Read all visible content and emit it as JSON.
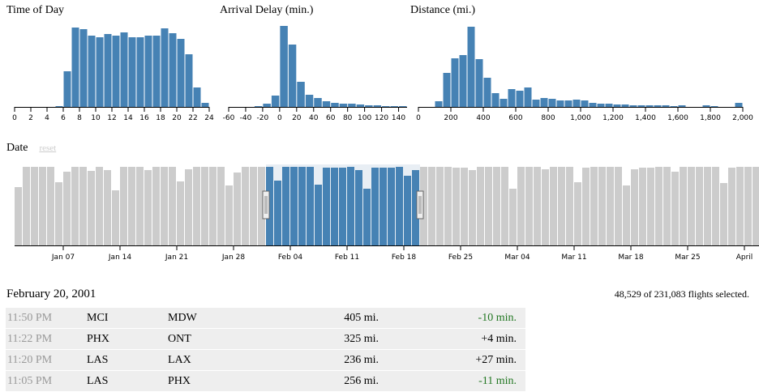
{
  "charts": {
    "time_of_day_title": "Time of Day",
    "arrival_delay_title": "Arrival Delay (min.)",
    "distance_title": "Distance (mi.)",
    "date_title": "Date",
    "reset_label": "reset"
  },
  "colors": {
    "selected": "#4682b4",
    "unselected": "#cccccc",
    "brush": "#e8eef4",
    "early": "#227722"
  },
  "chart_data": [
    {
      "type": "bar",
      "title": "Time of Day",
      "x": [
        0,
        1,
        2,
        3,
        4,
        5,
        6,
        7,
        8,
        9,
        10,
        11,
        12,
        13,
        14,
        15,
        16,
        17,
        18,
        19,
        20,
        21,
        22,
        23
      ],
      "values": [
        0,
        0,
        0,
        0,
        0,
        1,
        44,
        98,
        96,
        88,
        86,
        90,
        88,
        92,
        86,
        86,
        88,
        88,
        97,
        91,
        84,
        65,
        24,
        5
      ],
      "xlim": [
        0,
        24
      ],
      "ticks": [
        "0",
        "2",
        "4",
        "6",
        "8",
        "10",
        "12",
        "14",
        "16",
        "18",
        "20",
        "22",
        "24"
      ],
      "ylim": [
        0,
        100
      ]
    },
    {
      "type": "bar",
      "title": "Arrival Delay (min.)",
      "x": [
        -60,
        -50,
        -40,
        -30,
        -20,
        -10,
        0,
        10,
        20,
        30,
        40,
        50,
        60,
        70,
        80,
        90,
        100,
        110,
        120,
        130,
        140
      ],
      "values": [
        0,
        0,
        0,
        1,
        4,
        14,
        100,
        77,
        31,
        15,
        11,
        7,
        5,
        4,
        4,
        3,
        2,
        2,
        1,
        1,
        1
      ],
      "xlim": [
        -60,
        150
      ],
      "ticks": [
        "-60",
        "-40",
        "-20",
        "0",
        "20",
        "40",
        "60",
        "80",
        "100",
        "120",
        "140"
      ],
      "ylim": [
        0,
        100
      ]
    },
    {
      "type": "bar",
      "title": "Distance (mi.)",
      "x": [
        0,
        50,
        100,
        150,
        200,
        250,
        300,
        350,
        400,
        450,
        500,
        550,
        600,
        650,
        700,
        750,
        800,
        850,
        900,
        950,
        1000,
        1050,
        1100,
        1150,
        1200,
        1250,
        1300,
        1350,
        1400,
        1450,
        1500,
        1550,
        1600,
        1650,
        1700,
        1750,
        1800,
        1850,
        1900,
        1950
      ],
      "values": [
        0,
        0,
        7,
        42,
        60,
        64,
        99,
        59,
        36,
        17,
        10,
        22,
        20,
        24,
        9,
        11,
        10,
        8,
        8,
        9,
        8,
        5,
        4,
        4,
        3,
        3,
        2,
        2,
        2,
        2,
        2,
        1,
        2,
        0,
        0,
        2,
        1,
        0,
        0,
        5
      ],
      "xlim": [
        0,
        2000
      ],
      "ticks": [
        "0",
        "200",
        "400",
        "600",
        "800",
        "1,000",
        "1,200",
        "1,400",
        "1,600",
        "1,800",
        "2,000"
      ],
      "ylim": [
        0,
        100
      ]
    },
    {
      "type": "bar",
      "title": "Date",
      "start": "2001-01-01",
      "values": [
        72,
        97,
        97,
        97,
        97,
        78,
        91,
        97,
        97,
        92,
        97,
        93,
        68,
        97,
        97,
        97,
        93,
        97,
        97,
        97,
        79,
        94,
        97,
        97,
        97,
        97,
        74,
        90,
        97,
        97,
        97,
        97,
        80,
        97,
        97,
        97,
        97,
        75,
        96,
        96,
        96,
        97,
        93,
        70,
        96,
        96,
        96,
        97,
        86,
        93,
        97,
        97,
        97,
        97,
        96,
        96,
        93,
        97,
        97,
        97,
        97,
        70,
        97,
        97,
        97,
        94,
        97,
        97,
        97,
        78,
        96,
        97,
        97,
        97,
        97,
        74,
        94,
        96,
        96,
        97,
        97,
        91,
        97,
        97,
        97,
        97,
        97,
        77,
        96,
        97,
        97,
        97,
        97,
        97,
        75
      ],
      "selected_from": "2001-02-01",
      "selected_to": "2001-02-19",
      "ticks": [
        "Jan 07",
        "Jan 14",
        "Jan 21",
        "Jan 28",
        "Feb 04",
        "Feb 11",
        "Feb 18",
        "Feb 25",
        "Mar 04",
        "Mar 11",
        "Mar 18",
        "Mar 25",
        "April"
      ],
      "ylim": [
        0,
        100
      ]
    }
  ],
  "list": {
    "heading": "February 20, 2001",
    "totals": "48,529 of 231,083 flights selected.",
    "rows": [
      {
        "time": "11:50 PM",
        "origin": "MCI",
        "destination": "MDW",
        "distance": "405 mi.",
        "delay": "-10 min.",
        "early": true
      },
      {
        "time": "11:22 PM",
        "origin": "PHX",
        "destination": "ONT",
        "distance": "325 mi.",
        "delay": "+4 min.",
        "early": false
      },
      {
        "time": "11:20 PM",
        "origin": "LAS",
        "destination": "LAX",
        "distance": "236 mi.",
        "delay": "+27 min.",
        "early": false
      },
      {
        "time": "11:05 PM",
        "origin": "LAS",
        "destination": "PHX",
        "distance": "256 mi.",
        "delay": "-11 min.",
        "early": true
      }
    ]
  }
}
